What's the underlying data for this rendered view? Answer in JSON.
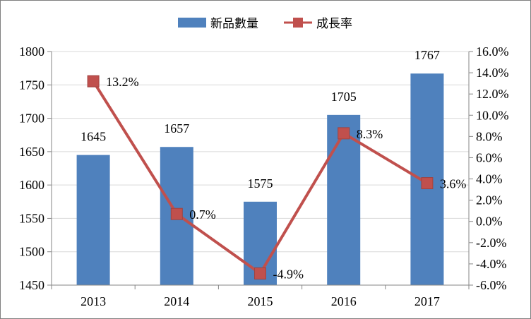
{
  "chart_data": {
    "type": "bar",
    "categories": [
      "2013",
      "2014",
      "2015",
      "2016",
      "2017"
    ],
    "series": [
      {
        "name": "新品數量",
        "type": "bar",
        "axis": "left",
        "color": "#4f81bd",
        "values": [
          1645,
          1657,
          1575,
          1705,
          1767
        ],
        "labels": [
          "1645",
          "1657",
          "1575",
          "1705",
          "1767"
        ]
      },
      {
        "name": "成長率",
        "type": "line",
        "axis": "right",
        "color": "#c0504d",
        "values": [
          13.2,
          0.7,
          -4.9,
          8.3,
          3.6
        ],
        "labels": [
          "13.2%",
          "0.7%",
          "-4.9%",
          "8.3%",
          "3.6%"
        ]
      }
    ],
    "y_left": {
      "min": 1450,
      "max": 1800,
      "ticks": [
        1450,
        1500,
        1550,
        1600,
        1650,
        1700,
        1750,
        1800
      ],
      "tick_labels": [
        "1450",
        "1500",
        "1550",
        "1600",
        "1650",
        "1700",
        "1750",
        "1800"
      ]
    },
    "y_right": {
      "min": -6,
      "max": 16,
      "ticks": [
        -6,
        -4,
        -2,
        0,
        2,
        4,
        6,
        8,
        10,
        12,
        14,
        16
      ],
      "tick_labels": [
        "-6.0%",
        "-4.0%",
        "-2.0%",
        "0.0%",
        "2.0%",
        "4.0%",
        "6.0%",
        "8.0%",
        "10.0%",
        "12.0%",
        "14.0%",
        "16.0%"
      ]
    },
    "title": "",
    "xlabel": "",
    "ylabel": "",
    "grid": true,
    "legend_position": "top-center",
    "colors": {
      "grid": "#d9d9d9",
      "axis": "#868686"
    }
  }
}
